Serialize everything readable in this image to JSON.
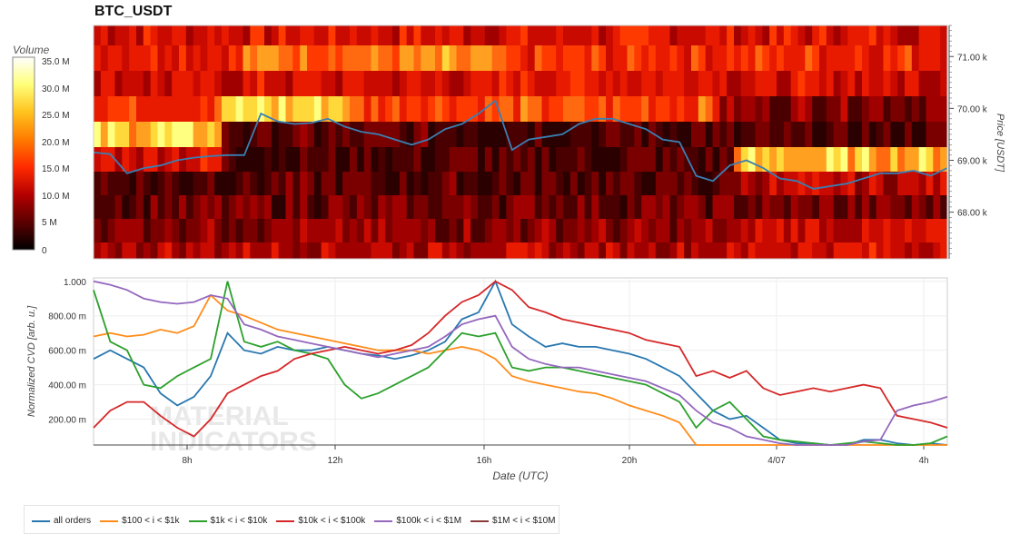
{
  "title": "BTC_USDT",
  "chart_data": [
    {
      "type": "heatmap",
      "title": "BTC_USDT",
      "colorbar": {
        "label": "Volume",
        "ticks": [
          "35.0 M",
          "30.0 M",
          "25.0 M",
          "20.0 M",
          "15.0 M",
          "10.0 M",
          "5 M",
          "0"
        ],
        "range": [
          0,
          35000000
        ],
        "colors": [
          "#000000",
          "#5a0000",
          "#b40000",
          "#ff2a00",
          "#ff7a00",
          "#ffc21e",
          "#ffff78",
          "#ffffff"
        ]
      },
      "ylabel": "Price [USDT]",
      "y_ticks": [
        "71.00 k",
        "70.00 k",
        "69.00 k",
        "68.00 k"
      ],
      "ylim": [
        67.1,
        71.6
      ],
      "price_bands": [
        71.5,
        71.0,
        70.5,
        70.0,
        69.5,
        69.0,
        68.5,
        68.0,
        67.5,
        67.25
      ],
      "price_series_color": "#3a7fb4",
      "price_series": [
        69.15,
        69.12,
        68.75,
        68.85,
        68.9,
        69.0,
        69.05,
        69.08,
        69.1,
        69.1,
        69.9,
        69.75,
        69.7,
        69.72,
        69.8,
        69.65,
        69.55,
        69.5,
        69.4,
        69.3,
        69.4,
        69.6,
        69.7,
        69.9,
        70.15,
        69.2,
        69.4,
        69.45,
        69.5,
        69.7,
        69.8,
        69.8,
        69.7,
        69.6,
        69.4,
        69.35,
        68.7,
        68.6,
        68.9,
        69.0,
        68.85,
        68.65,
        68.6,
        68.45,
        68.5,
        68.55,
        68.65,
        68.75,
        68.75,
        68.8,
        68.7,
        68.85
      ]
    },
    {
      "type": "line",
      "xlabel": "Date (UTC)",
      "ylabel": "Normalized CVD [arb. u.]",
      "x_ticks": [
        "8h",
        "12h",
        "16h",
        "20h",
        "4/07",
        "4h"
      ],
      "y_ticks": [
        "1.000",
        "800.00 m",
        "600.00 m",
        "400.00 m",
        "200.00 m"
      ],
      "ylim": [
        0.05,
        1.02
      ],
      "series": [
        {
          "name": "all orders",
          "color": "#2877b0",
          "values": [
            0.55,
            0.6,
            0.55,
            0.5,
            0.35,
            0.28,
            0.33,
            0.45,
            0.7,
            0.6,
            0.58,
            0.62,
            0.6,
            0.6,
            0.62,
            0.6,
            0.58,
            0.57,
            0.55,
            0.57,
            0.6,
            0.65,
            0.78,
            0.82,
            1.0,
            0.75,
            0.68,
            0.62,
            0.64,
            0.62,
            0.62,
            0.6,
            0.58,
            0.55,
            0.5,
            0.45,
            0.35,
            0.25,
            0.2,
            0.22,
            0.15,
            0.08,
            0.06,
            0.06,
            0.05,
            0.05,
            0.08,
            0.08,
            0.06,
            0.05,
            0.06,
            0.05
          ]
        },
        {
          "name": "$100 < i < $1k",
          "color": "#ff8c1a",
          "values": [
            0.68,
            0.7,
            0.68,
            0.69,
            0.72,
            0.7,
            0.74,
            0.92,
            0.83,
            0.8,
            0.76,
            0.72,
            0.7,
            0.68,
            0.66,
            0.64,
            0.62,
            0.6,
            0.6,
            0.6,
            0.58,
            0.6,
            0.62,
            0.6,
            0.55,
            0.45,
            0.42,
            0.4,
            0.38,
            0.36,
            0.35,
            0.32,
            0.28,
            0.25,
            0.22,
            0.18,
            0.05,
            0.05,
            0.05,
            0.05,
            0.05,
            0.05,
            0.05,
            0.05,
            0.05,
            0.05,
            0.05,
            0.05,
            0.05,
            0.05,
            0.05,
            0.05
          ]
        },
        {
          "name": "$1k < i < $10k",
          "color": "#2ca02c",
          "values": [
            0.95,
            0.65,
            0.6,
            0.4,
            0.38,
            0.45,
            0.5,
            0.55,
            1.0,
            0.65,
            0.62,
            0.65,
            0.6,
            0.58,
            0.55,
            0.4,
            0.32,
            0.35,
            0.4,
            0.45,
            0.5,
            0.6,
            0.7,
            0.68,
            0.7,
            0.5,
            0.48,
            0.5,
            0.5,
            0.48,
            0.46,
            0.44,
            0.42,
            0.4,
            0.35,
            0.3,
            0.15,
            0.25,
            0.3,
            0.2,
            0.1,
            0.08,
            0.07,
            0.06,
            0.05,
            0.06,
            0.07,
            0.06,
            0.05,
            0.05,
            0.06,
            0.1
          ]
        },
        {
          "name": "$10k < i < $100k",
          "color": "#d62728",
          "values": [
            0.15,
            0.25,
            0.3,
            0.3,
            0.22,
            0.15,
            0.1,
            0.2,
            0.35,
            0.4,
            0.45,
            0.48,
            0.55,
            0.58,
            0.6,
            0.62,
            0.6,
            0.58,
            0.6,
            0.63,
            0.7,
            0.8,
            0.88,
            0.92,
            1.0,
            0.95,
            0.85,
            0.82,
            0.78,
            0.76,
            0.74,
            0.72,
            0.7,
            0.66,
            0.64,
            0.62,
            0.45,
            0.48,
            0.44,
            0.48,
            0.38,
            0.34,
            0.36,
            0.38,
            0.36,
            0.38,
            0.4,
            0.38,
            0.22,
            0.2,
            0.18,
            0.15
          ]
        },
        {
          "name": "$100k < i < $1M",
          "color": "#9467bd",
          "values": [
            1.0,
            0.98,
            0.95,
            0.9,
            0.88,
            0.87,
            0.88,
            0.92,
            0.9,
            0.75,
            0.72,
            0.68,
            0.66,
            0.64,
            0.62,
            0.6,
            0.58,
            0.56,
            0.58,
            0.6,
            0.62,
            0.68,
            0.75,
            0.78,
            0.8,
            0.62,
            0.55,
            0.52,
            0.5,
            0.5,
            0.48,
            0.46,
            0.44,
            0.42,
            0.38,
            0.34,
            0.25,
            0.18,
            0.15,
            0.1,
            0.08,
            0.06,
            0.05,
            0.05,
            0.05,
            0.05,
            0.07,
            0.08,
            0.25,
            0.28,
            0.3,
            0.33
          ]
        },
        {
          "name": "$1M < i < $10M",
          "color": "#8c3a3a",
          "values": []
        }
      ]
    }
  ],
  "watermark": "MATERIAL INDICATORS"
}
